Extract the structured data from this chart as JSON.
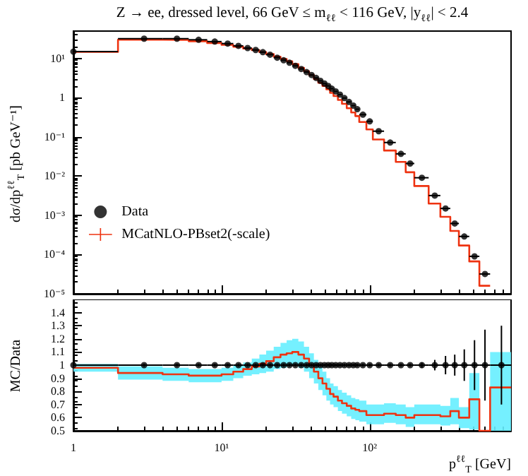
{
  "chart_data": [
    {
      "type": "scatter",
      "title": "Z → ee, dressed level, 66 GeV ≤ m$_{ℓℓ}$ < 116 GeV, |y$_{ℓℓ}$| < 2.4",
      "ylabel": "dσ/dp$^{ℓℓ}$$_{T}$ [pb GeV⁻¹]",
      "log": "xy",
      "xlim": [
        1,
        900
      ],
      "xticks": [
        1,
        10,
        100
      ],
      "ylim": [
        1e-05,
        50
      ],
      "yticks": [
        {
          "value": 1e-05,
          "label": "10⁻⁵"
        },
        {
          "value": 0.0001,
          "label": "10⁻⁴"
        },
        {
          "value": 0.001,
          "label": "10⁻³"
        },
        {
          "value": 0.01,
          "label": "10⁻²"
        },
        {
          "value": 0.1,
          "label": "10⁻¹"
        },
        {
          "value": 1,
          "label": "1"
        },
        {
          "value": 10,
          "label": "10¹"
        }
      ],
      "tick_labels": "y",
      "legend": "left",
      "marker": "circle",
      "series": [
        {
          "name": "Data",
          "color": "#000000",
          "x": [
            1,
            3,
            5,
            7,
            9,
            11,
            13,
            15,
            17,
            19,
            21.25,
            23.75,
            26.25,
            28.75,
            31.5,
            34.5,
            37.5,
            40.5,
            43.5,
            46.5,
            49.5,
            52.5,
            55.5,
            59,
            63,
            67.5,
            72.5,
            77.5,
            82.5,
            90,
            100,
            115,
            137.5,
            162.5,
            187.5,
            225,
            275,
            325,
            375,
            435,
            510,
            600
          ],
          "values": [
            15,
            32,
            32,
            30,
            27,
            24,
            21,
            18.5,
            16.5,
            14.5,
            12.5,
            10.5,
            9,
            7.8,
            6.5,
            5.4,
            4.5,
            3.8,
            3.2,
            2.7,
            2.3,
            2.0,
            1.7,
            1.45,
            1.2,
            0.98,
            0.78,
            0.63,
            0.51,
            0.37,
            0.25,
            0.14,
            0.072,
            0.037,
            0.021,
            0.0091,
            0.0032,
            0.0015,
            0.00062,
            0.00029,
            9e-05,
            3.2e-05
          ],
          "xerrors": [
            1,
            1,
            1,
            1,
            1,
            1,
            1,
            1,
            1,
            1,
            1.25,
            1.25,
            1.25,
            1.25,
            1.5,
            1.5,
            1.5,
            1.5,
            1.5,
            1.5,
            1.5,
            1.5,
            1.5,
            2,
            2,
            2.5,
            2.5,
            2.5,
            2.5,
            5,
            5,
            10,
            12.5,
            12.5,
            12.5,
            25,
            25,
            25,
            25,
            35,
            40,
            50
          ]
        },
        {
          "name": "MCatNLO-PBset2(-scale)",
          "type": "histogram",
          "color": "#ee3311",
          "bins": [
            1,
            2,
            4,
            6,
            8,
            10,
            12,
            14,
            16,
            18,
            20,
            22.5,
            25,
            27.5,
            30,
            33,
            36,
            39,
            42,
            45,
            48,
            51,
            54,
            57,
            61,
            65,
            70,
            75,
            80,
            85,
            95,
            105,
            125,
            150,
            175,
            200,
            250,
            300,
            350,
            400,
            470,
            550,
            650
          ],
          "values": [
            14.7,
            30,
            29.8,
            27.6,
            24.8,
            22.3,
            20,
            17.9,
            16.3,
            14.6,
            12.9,
            11.1,
            9.7,
            8.5,
            7.2,
            5.8,
            4.7,
            3.8,
            3.0,
            2.4,
            2.0,
            1.64,
            1.33,
            1.1,
            0.88,
            0.7,
            0.54,
            0.42,
            0.34,
            0.24,
            0.155,
            0.086,
            0.045,
            0.023,
            0.0126,
            0.0056,
            0.002,
            0.00092,
            0.0004,
            0.00017,
            6.7e-05,
            1.6e-05
          ]
        }
      ]
    },
    {
      "type": "scatter",
      "xlabel": "p$^{ℓℓ}$$_{T}$ [GeV]",
      "ylabel": "MC/Data",
      "log": "x",
      "xlim": [
        1,
        900
      ],
      "xticks": [
        1,
        {
          "value": 10,
          "label": "10¹"
        },
        {
          "value": 100,
          "label": "10²"
        }
      ],
      "ylim": [
        0.5,
        1.5
      ],
      "yticks": [
        0.5,
        0.6,
        0.7,
        0.8,
        0.9,
        1,
        1.1,
        1.2,
        1.3,
        1.4
      ],
      "series": [
        {
          "color": "#000000",
          "marker": "circle",
          "x": [
            1,
            3,
            5,
            7,
            9,
            11,
            13,
            15,
            17,
            19,
            21.25,
            23.75,
            26.25,
            28.75,
            31.5,
            34.5,
            37.5,
            40.5,
            43.5,
            46.5,
            49.5,
            52.5,
            55.5,
            59,
            63,
            67.5,
            72.5,
            77.5,
            82.5,
            90,
            100,
            115,
            137.5,
            162.5,
            187.5,
            225,
            275,
            325,
            375,
            435,
            510,
            600,
            775
          ],
          "values": [
            1,
            1,
            1,
            1,
            1,
            1,
            1,
            1,
            1,
            1,
            1,
            1,
            1,
            1,
            1,
            1,
            1,
            1,
            1,
            1,
            1,
            1,
            1,
            1,
            1,
            1,
            1,
            1,
            1,
            1,
            1,
            1,
            1,
            1,
            1,
            1,
            1,
            1,
            1,
            1,
            1,
            1,
            1
          ],
          "errors": [
            0.01,
            0.01,
            0.01,
            0.01,
            0.01,
            0.01,
            0.01,
            0.01,
            0.01,
            0.01,
            0.01,
            0.01,
            0.01,
            0.01,
            0.01,
            0.01,
            0.01,
            0.01,
            0.01,
            0.01,
            0.01,
            0.01,
            0.01,
            0.01,
            0.01,
            0.01,
            0.01,
            0.01,
            0.01,
            0.01,
            0.01,
            0.01,
            0.01,
            0.01,
            0.01,
            0.02,
            0.04,
            0.07,
            0.08,
            0.12,
            0.19,
            0.27,
            0.3
          ],
          "xerrors": [
            1,
            1,
            1,
            1,
            1,
            1,
            1,
            1,
            1,
            1,
            1.25,
            1.25,
            1.25,
            1.25,
            1.5,
            1.5,
            1.5,
            1.5,
            1.5,
            1.5,
            1.5,
            1.5,
            1.5,
            2,
            2,
            2.5,
            2.5,
            2.5,
            2.5,
            5,
            5,
            10,
            12.5,
            12.5,
            12.5,
            25,
            25,
            25,
            25,
            35,
            40,
            50,
            125
          ]
        },
        {
          "type": "step",
          "color": "#ee3311",
          "marker": "none",
          "x": [
            1,
            2,
            4,
            6,
            8,
            10,
            12,
            14,
            16,
            18,
            20,
            22.5,
            25,
            27.5,
            30,
            33,
            36,
            39,
            42,
            45,
            48,
            51,
            54,
            57,
            61,
            65,
            70,
            75,
            80,
            85,
            95,
            105,
            125,
            150,
            175,
            200,
            250,
            300,
            350,
            400,
            470,
            550,
            650,
            900
          ],
          "values": [
            0.98,
            0.94,
            0.93,
            0.92,
            0.92,
            0.93,
            0.95,
            0.97,
            0.99,
            1.01,
            1.03,
            1.06,
            1.08,
            1.09,
            1.1,
            1.08,
            1.05,
            1.0,
            0.95,
            0.9,
            0.86,
            0.82,
            0.78,
            0.76,
            0.73,
            0.71,
            0.69,
            0.67,
            0.66,
            0.65,
            0.62,
            0.62,
            0.63,
            0.62,
            0.6,
            0.62,
            0.62,
            0.61,
            0.65,
            0.6,
            0.74,
            0.5,
            0.83,
            0.83
          ],
          "lower": [
            0.95,
            0.89,
            0.88,
            0.87,
            0.87,
            0.88,
            0.9,
            0.92,
            0.93,
            0.94,
            0.95,
            0.97,
            0.98,
            0.99,
            1.0,
            0.98,
            0.95,
            0.9,
            0.86,
            0.81,
            0.77,
            0.73,
            0.7,
            0.68,
            0.65,
            0.63,
            0.61,
            0.59,
            0.58,
            0.57,
            0.55,
            0.55,
            0.56,
            0.55,
            0.53,
            0.55,
            0.55,
            0.54,
            0.55,
            0.52,
            0.51,
            null,
            0.5,
            0.5
          ],
          "upper": [
            1.01,
            0.99,
            0.98,
            0.97,
            0.97,
            0.98,
            1.0,
            1.02,
            1.05,
            1.08,
            1.11,
            1.14,
            1.17,
            1.19,
            1.2,
            1.18,
            1.14,
            1.09,
            1.04,
            0.99,
            0.95,
            0.9,
            0.86,
            0.84,
            0.81,
            0.79,
            0.77,
            0.75,
            0.74,
            0.73,
            0.7,
            0.7,
            0.71,
            0.7,
            0.68,
            0.7,
            0.7,
            0.69,
            0.75,
            0.68,
            0.94,
            null,
            1.1,
            1.1
          ]
        }
      ]
    }
  ]
}
